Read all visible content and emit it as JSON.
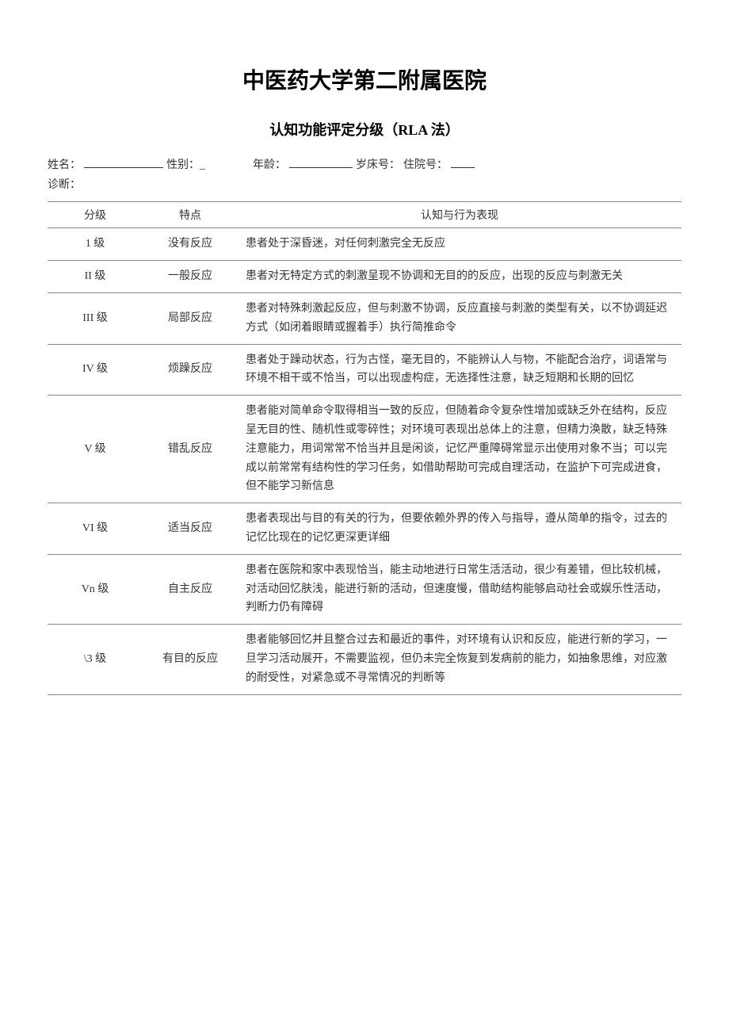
{
  "title": "中医药大学第二附属医院",
  "subtitle": "认知功能评定分级（RLA 法）",
  "patient_info": {
    "name_label": "姓名：",
    "gender_label": "性别：_",
    "age_label": "年龄：",
    "age_unit": "岁",
    "bed_label": "床号：",
    "admission_label": "住院号：",
    "diagnosis_label": "诊断："
  },
  "table": {
    "headers": {
      "level": "分级",
      "feature": "特点",
      "description": "认知与行为表现"
    },
    "rows": [
      {
        "level": "1 级",
        "feature": "没有反应",
        "description": "患者处于深昏迷，对任何刺激完全无反应"
      },
      {
        "level": "II 级",
        "feature": "一般反应",
        "description": "患者对无特定方式的刺激呈现不协调和无目的的反应，出现的反应与刺激无关"
      },
      {
        "level": "III 级",
        "feature": "局部反应",
        "description": "患者对特殊刺激起反应，但与刺激不协调，反应直接与刺激的类型有关，以不协调延迟方式（如闭着眼睛或握着手）执行简推命令"
      },
      {
        "level": "IV 级",
        "feature": "烦躁反应",
        "description": "患者处于躁动状态，行为古怪，毫无目的，不能辨认人与物，不能配合治疗，词语常与环境不相干或不恰当，可以出现虚构症，无选择性注意，缺乏短期和长期的回忆"
      },
      {
        "level": "V 级",
        "feature": "错乱反应",
        "description": "患者能对简单命令取得相当一致的反应，但随着命令复杂性增加或缺乏外在结构，反应呈无目的性、随机性或零碎性；对环境可表现出总体上的注意，但精力涣散，缺乏特殊注意能力，用词常常不恰当并且是闲谈，记忆严重障碍常显示出使用对象不当；可以完成以前常常有结构性的学习任务，如借助帮助可完成自理活动，在监护下可完成进食，但不能学习新信息"
      },
      {
        "level": "VI 级",
        "feature": "适当反应",
        "description": "患者表现出与目的有关的行为，但要依赖外界的传入与指导，遵从简单的指令，过去的记忆比现在的记忆更深更详细"
      },
      {
        "level": "Vn 级",
        "feature": "自主反应",
        "description": "患者在医院和家中表现恰当，能主动地进行日常生活活动，很少有差错，但比较机械，对活动回忆肤浅，能进行新的活动，但速度慢，借助结构能够启动社会或娱乐性活动，判断力仍有障碍"
      },
      {
        "level": "\\3 级",
        "feature": "有目的反应",
        "description": "患者能够回忆并且整合过去和最近的事件，对环境有认识和反应，能进行新的学习，一旦学习活动展开，不需要监视，但仍未完全恢复到发病前的能力，如抽象思维，对应激的耐受性，对紧急或不寻常情况的判断等"
      }
    ]
  },
  "styling": {
    "background_color": "#ffffff",
    "text_color": "#333333",
    "border_color": "#888888",
    "title_fontsize": 28,
    "subtitle_fontsize": 18,
    "body_fontsize": 14,
    "font_family": "SimSun"
  }
}
